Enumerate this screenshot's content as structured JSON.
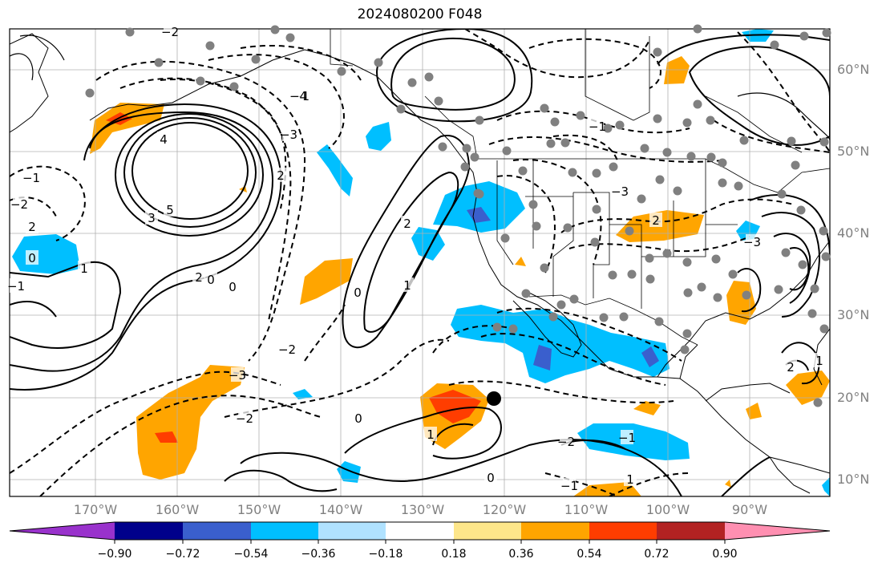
{
  "title": "2024080200 F048",
  "lat_labels": [
    "60°N",
    "50°N",
    "40°N",
    "30°N",
    "20°N",
    "10°N"
  ],
  "lon_labels": [
    "170°W",
    "160°W",
    "150°W",
    "140°W",
    "130°W",
    "120°W",
    "110°W",
    "100°W",
    "90°W"
  ],
  "colorbar": {
    "colors": [
      "#9932cc",
      "#00008b",
      "#3a5fcd",
      "#00bfff",
      "#b0e2ff",
      "#ffffff",
      "#fde68a",
      "#ffa500",
      "#ff3d00",
      "#b22222",
      "#ff8fb1"
    ],
    "tick_labels": [
      "−0.90",
      "−0.72",
      "−0.54",
      "−0.36",
      "−0.18",
      "0.18",
      "0.36",
      "0.54",
      "0.72",
      "0.90"
    ]
  },
  "contour_labels": [
    "4",
    "5",
    "3",
    "2",
    "1",
    "0",
    "0",
    "0",
    "−1",
    "−2",
    "−2",
    "−3",
    "−3",
    "−4",
    "2",
    "1",
    "0",
    "−1",
    "−1",
    "−2",
    "−3",
    "−2",
    "2",
    "1",
    "0",
    "−1",
    "2",
    "−3",
    "2",
    "1",
    "1",
    "−1",
    "−2",
    "2",
    "0",
    "−1"
  ]
}
